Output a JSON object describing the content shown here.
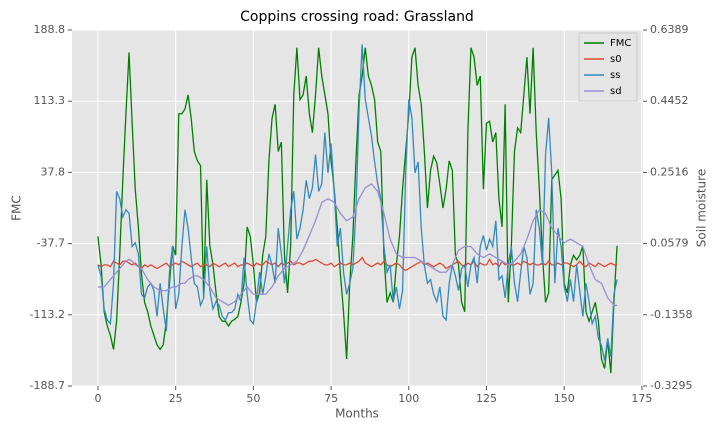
{
  "chart_data": {
    "type": "line",
    "title": "Coppins crossing road: Grassland",
    "xlabel": "Months",
    "ylabel": "FMC",
    "y2label": "Soil moisture",
    "x": [
      0,
      1,
      2,
      3,
      4,
      5,
      6,
      7,
      8,
      9,
      10,
      11,
      12,
      13,
      14,
      15,
      16,
      17,
      18,
      19,
      20,
      21,
      22,
      23,
      24,
      25,
      26,
      27,
      28,
      29,
      30,
      31,
      32,
      33,
      34,
      35,
      36,
      37,
      38,
      39,
      40,
      41,
      42,
      43,
      44,
      45,
      46,
      47,
      48,
      49,
      50,
      51,
      52,
      53,
      54,
      55,
      56,
      57,
      58,
      59,
      60,
      61,
      62,
      63,
      64,
      65,
      66,
      67,
      68,
      69,
      70,
      71,
      72,
      73,
      74,
      75,
      76,
      77,
      78,
      79,
      80,
      81,
      82,
      83,
      84,
      85,
      86,
      87,
      88,
      89,
      90,
      91,
      92,
      93,
      94,
      95,
      96,
      97,
      98,
      99,
      100,
      101,
      102,
      103,
      104,
      105,
      106,
      107,
      108,
      109,
      110,
      111,
      112,
      113,
      114,
      115,
      116,
      117,
      118,
      119,
      120,
      121,
      122,
      123,
      124,
      125,
      126,
      127,
      128,
      129,
      130,
      131,
      132,
      133,
      134,
      135,
      136,
      137,
      138,
      139,
      140,
      141,
      142,
      143,
      144,
      145,
      146,
      147,
      148,
      149,
      150,
      151,
      152,
      153,
      154,
      155,
      156,
      157,
      158,
      159,
      160,
      161,
      162,
      163,
      164,
      165,
      166,
      167
    ],
    "series": [
      {
        "name": "FMC",
        "color": "#008000",
        "values": [
          -30,
          -60,
          -110,
          -125,
          -135,
          -150,
          -120,
          -50,
          30,
          100,
          165,
          90,
          20,
          -20,
          -70,
          -100,
          -110,
          -125,
          -135,
          -145,
          -150,
          -145,
          -120,
          -80,
          -40,
          -50,
          100,
          100,
          105,
          120,
          95,
          60,
          50,
          45,
          -95,
          30,
          -40,
          -60,
          -90,
          -115,
          -120,
          -120,
          -125,
          -120,
          -118,
          -115,
          -100,
          -80,
          -20,
          -30,
          -60,
          -100,
          -90,
          -50,
          -30,
          50,
          95,
          110,
          60,
          70,
          -50,
          -90,
          -40,
          120,
          170,
          115,
          120,
          140,
          100,
          80,
          120,
          170,
          140,
          120,
          100,
          50,
          20,
          -20,
          -70,
          -110,
          -160,
          -80,
          -30,
          50,
          120,
          140,
          170,
          140,
          130,
          115,
          70,
          60,
          -50,
          -100,
          -90,
          -100,
          -60,
          -30,
          20,
          60,
          100,
          160,
          170,
          130,
          110,
          60,
          0,
          40,
          55,
          48,
          25,
          0,
          20,
          50,
          40,
          -50,
          -60,
          -100,
          -110,
          80,
          170,
          160,
          130,
          140,
          20,
          90,
          92,
          70,
          80,
          10,
          -20,
          110,
          -100,
          -40,
          60,
          85,
          80,
          120,
          160,
          100,
          170,
          80,
          20,
          -50,
          -100,
          -90,
          30,
          35,
          40,
          10,
          -80,
          -90,
          -60,
          -50,
          -55,
          -50,
          -40,
          -110,
          -120,
          -110,
          -100,
          -120,
          -160,
          -170,
          -140,
          -175,
          -100,
          -40
        ]
      },
      {
        "name": "s0",
        "color": "#e24a33",
        "axis": "y2",
        "values": [
          0.0,
          -0.005,
          0.0,
          0.0,
          -0.005,
          0.01,
          0.005,
          0.0,
          0.01,
          0.01,
          0.005,
          0.0,
          0.005,
          -0.005,
          -0.01,
          0.0,
          -0.005,
          0.0,
          -0.005,
          -0.01,
          -0.005,
          0.0,
          0.005,
          -0.005,
          0.0,
          0.005,
          0.0,
          0.01,
          0.005,
          0.0,
          -0.005,
          0.0,
          0.005,
          -0.005,
          0.0,
          0.0,
          -0.005,
          0.005,
          0.0,
          -0.005,
          0.0,
          0.005,
          -0.005,
          0.0,
          0.005,
          -0.005,
          0.0,
          0.0,
          0.005,
          0.0,
          -0.005,
          0.005,
          0.0,
          0.0,
          0.01,
          0.005,
          0.0,
          0.005,
          -0.005,
          0.005,
          0.0,
          0.005,
          0.01,
          0.0,
          0.005,
          0.005,
          0.0,
          0.005,
          0.01,
          0.01,
          0.015,
          0.01,
          0.005,
          0.0,
          0.0,
          0.005,
          -0.005,
          0.0,
          0.005,
          0.0,
          0.0,
          0.005,
          0.0,
          0.005,
          0.01,
          0.02,
          0.005,
          0.0,
          -0.005,
          0.0,
          0.005,
          0.0,
          0.01,
          0.0,
          -0.005,
          0.0,
          0.005,
          0.0,
          -0.01,
          -0.015,
          -0.01,
          -0.005,
          0.0,
          0.005,
          0.01,
          0.0,
          0.005,
          0.0,
          -0.005,
          0.0,
          0.005,
          0.0,
          -0.01,
          -0.005,
          0.0,
          0.005,
          0.01,
          0.0,
          -0.005,
          0.005,
          0.0,
          0.01,
          -0.005,
          0.005,
          0.0,
          0.0,
          0.015,
          0.0,
          0.005,
          -0.005,
          0.01,
          0.0,
          0.005,
          0.0,
          0.0,
          0.005,
          0.0,
          0.01,
          0.005,
          0.0,
          0.005,
          0.0,
          0.0,
          0.005,
          0.0,
          0.01,
          0.0,
          0.0,
          0.005,
          0.0,
          0.005,
          0.005,
          0.0,
          -0.005,
          0.0,
          0.01,
          0.0,
          -0.005,
          0.005,
          0.0,
          -0.005,
          0.005,
          0.0,
          -0.005,
          0.0,
          0.005,
          0.0,
          0.0
        ]
      },
      {
        "name": "ss",
        "color": "#348abd",
        "axis": "y2",
        "values": [
          0.0,
          -0.03,
          -0.12,
          -0.15,
          -0.16,
          -0.05,
          0.2,
          0.18,
          0.13,
          0.15,
          0.14,
          0.05,
          0.06,
          0.03,
          -0.08,
          -0.09,
          -0.06,
          -0.05,
          -0.07,
          -0.14,
          -0.05,
          -0.12,
          -0.18,
          -0.02,
          0.05,
          -0.12,
          -0.08,
          0.05,
          0.15,
          0.1,
          0.02,
          -0.05,
          -0.06,
          -0.11,
          -0.09,
          0.05,
          -0.07,
          -0.12,
          -0.1,
          -0.11,
          -0.14,
          -0.15,
          -0.13,
          -0.13,
          -0.12,
          -0.08,
          -0.1,
          0.02,
          -0.08,
          -0.15,
          -0.16,
          -0.1,
          -0.02,
          -0.08,
          -0.03,
          0.03,
          0.0,
          -0.05,
          0.1,
          0.03,
          -0.05,
          0.05,
          0.15,
          0.2,
          0.07,
          0.1,
          0.15,
          0.23,
          0.18,
          0.21,
          0.3,
          0.2,
          0.22,
          0.36,
          0.25,
          0.33,
          0.2,
          0.05,
          0.1,
          -0.02,
          -0.08,
          -0.05,
          -0.01,
          0.15,
          0.42,
          0.6,
          0.45,
          0.4,
          0.35,
          0.28,
          0.22,
          0.18,
          0.05,
          -0.02,
          0.0,
          -0.1,
          -0.06,
          -0.12,
          -0.07,
          0.25,
          0.45,
          0.4,
          0.25,
          0.28,
          0.1,
          0.0,
          -0.05,
          -0.04,
          -0.08,
          -0.1,
          -0.06,
          -0.14,
          -0.15,
          -0.05,
          0.0,
          -0.03,
          -0.07,
          -0.01,
          0.0,
          -0.06,
          0.0,
          0.02,
          -0.05,
          0.05,
          0.08,
          0.04,
          0.07,
          0.05,
          0.12,
          -0.04,
          -0.03,
          -0.09,
          0.0,
          0.05,
          -0.05,
          -0.1,
          -0.02,
          0.05,
          0.02,
          -0.08,
          -0.05,
          0.15,
          0.1,
          0.0,
          0.3,
          0.4,
          0.25,
          -0.05,
          0.1,
          0.05,
          -0.06,
          -0.1,
          -0.04,
          -0.1,
          0.0,
          -0.07,
          -0.14,
          -0.05,
          -0.1,
          -0.16,
          -0.14,
          -0.2,
          -0.22,
          -0.26,
          -0.2,
          -0.25,
          -0.08,
          -0.04
        ]
      },
      {
        "name": "sd",
        "color": "#988ed5",
        "axis": "y2",
        "values": [
          -0.06,
          -0.06,
          -0.06,
          -0.05,
          -0.04,
          -0.03,
          -0.02,
          -0.01,
          0.0,
          0.01,
          0.015,
          0.01,
          0.0,
          -0.005,
          -0.01,
          -0.025,
          -0.04,
          -0.05,
          -0.06,
          -0.065,
          -0.07,
          -0.07,
          -0.07,
          -0.065,
          -0.06,
          -0.06,
          -0.055,
          -0.05,
          -0.05,
          -0.04,
          -0.035,
          -0.03,
          -0.03,
          -0.035,
          -0.04,
          -0.05,
          -0.06,
          -0.075,
          -0.09,
          -0.095,
          -0.1,
          -0.105,
          -0.11,
          -0.105,
          -0.1,
          -0.09,
          -0.08,
          -0.07,
          -0.06,
          -0.07,
          -0.08,
          -0.08,
          -0.08,
          -0.08,
          -0.08,
          -0.07,
          -0.06,
          -0.045,
          -0.03,
          -0.02,
          -0.01,
          -0.005,
          0.0,
          0.005,
          0.01,
          0.025,
          0.04,
          0.06,
          0.08,
          0.1,
          0.12,
          0.145,
          0.17,
          0.175,
          0.18,
          0.175,
          0.17,
          0.155,
          0.14,
          0.13,
          0.12,
          0.125,
          0.13,
          0.155,
          0.18,
          0.195,
          0.21,
          0.215,
          0.22,
          0.21,
          0.2,
          0.17,
          0.14,
          0.105,
          0.07,
          0.05,
          0.03,
          0.025,
          0.02,
          0.02,
          0.02,
          0.02,
          0.02,
          0.015,
          0.01,
          0.005,
          0.0,
          -0.005,
          -0.01,
          -0.015,
          -0.02,
          -0.02,
          -0.02,
          -0.01,
          0.0,
          0.02,
          0.04,
          0.045,
          0.05,
          0.05,
          0.05,
          0.04,
          0.03,
          0.025,
          0.02,
          0.025,
          0.03,
          0.025,
          0.02,
          0.015,
          0.01,
          0.005,
          0.0,
          0.005,
          0.01,
          0.02,
          0.03,
          0.05,
          0.07,
          0.095,
          0.12,
          0.135,
          0.15,
          0.145,
          0.14,
          0.12,
          0.1,
          0.09,
          0.08,
          0.07,
          0.06,
          0.065,
          0.07,
          0.065,
          0.06,
          0.055,
          0.05,
          0.025,
          0.0,
          -0.02,
          -0.04,
          -0.045,
          -0.05,
          -0.07,
          -0.09,
          -0.1,
          -0.11,
          -0.11
        ]
      }
    ],
    "xlim": [
      -8.35,
      175.35
    ],
    "xticks": [
      0,
      25,
      50,
      75,
      100,
      125,
      150,
      175
    ],
    "ylim": [
      -188.7,
      188.8
    ],
    "yticks": [
      -188.7,
      -113.2,
      -37.7,
      37.8,
      113.3,
      188.8
    ],
    "y2lim": [
      -0.3295,
      0.6389
    ],
    "y2ticks": [
      -0.3295,
      -0.1358,
      0.0579,
      0.2516,
      0.4452,
      0.6389
    ],
    "grid": true,
    "legend": "upper right"
  }
}
